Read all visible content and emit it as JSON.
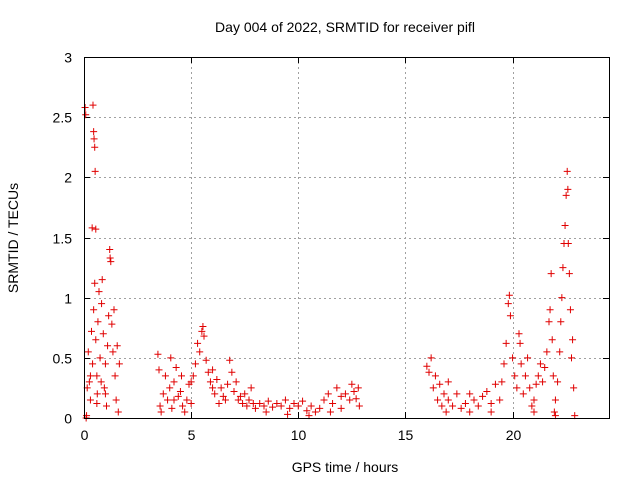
{
  "chart_data": {
    "type": "scatter",
    "title": "Day 004 of 2022, SRMTID for receiver pifl",
    "xlabel": "GPS time / hours",
    "ylabel": "SRMTID / TECUs",
    "xlim": [
      0,
      24.5
    ],
    "ylim": [
      0,
      3
    ],
    "x_ticks": [
      0,
      5,
      10,
      15,
      20
    ],
    "x_tick_labels": [
      "0",
      "5",
      "10",
      "15",
      "20"
    ],
    "y_ticks": [
      0,
      0.5,
      1,
      1.5,
      2,
      2.5,
      3
    ],
    "y_tick_labels": [
      "0",
      "0.5",
      "1",
      "1.5",
      "2",
      "2.5",
      "3"
    ],
    "grid": true,
    "marker": "+",
    "color": "#e00000",
    "series": [
      {
        "name": "SRMTID",
        "points": [
          [
            0.05,
            2.58
          ],
          [
            0.08,
            2.52
          ],
          [
            0.1,
            0.0
          ],
          [
            0.12,
            0.02
          ],
          [
            0.15,
            0.25
          ],
          [
            0.2,
            0.55
          ],
          [
            0.25,
            0.3
          ],
          [
            0.3,
            0.15
          ],
          [
            0.35,
            0.72
          ],
          [
            0.38,
            1.58
          ],
          [
            0.42,
            2.6
          ],
          [
            0.45,
            2.38
          ],
          [
            0.47,
            2.32
          ],
          [
            0.5,
            2.25
          ],
          [
            0.52,
            2.05
          ],
          [
            0.55,
            1.57
          ],
          [
            0.4,
            0.45
          ],
          [
            0.45,
            0.9
          ],
          [
            0.5,
            1.12
          ],
          [
            0.55,
            0.65
          ],
          [
            0.6,
            0.35
          ],
          [
            0.62,
            0.2
          ],
          [
            0.65,
            0.8
          ],
          [
            0.7,
            1.05
          ],
          [
            0.75,
            0.5
          ],
          [
            0.8,
            0.3
          ],
          [
            0.82,
            0.95
          ],
          [
            0.85,
            1.15
          ],
          [
            0.9,
            0.7
          ],
          [
            0.95,
            0.25
          ],
          [
            1.0,
            0.45
          ],
          [
            1.05,
            0.1
          ],
          [
            1.1,
            0.6
          ],
          [
            1.15,
            0.85
          ],
          [
            1.2,
            1.4
          ],
          [
            1.22,
            1.33
          ],
          [
            1.25,
            1.3
          ],
          [
            1.3,
            0.78
          ],
          [
            1.35,
            0.55
          ],
          [
            1.4,
            0.9
          ],
          [
            1.45,
            0.35
          ],
          [
            1.5,
            0.15
          ],
          [
            1.55,
            0.6
          ],
          [
            1.6,
            0.05
          ],
          [
            1.65,
            0.45
          ],
          [
            0.3,
            0.35
          ],
          [
            0.6,
            0.12
          ],
          [
            1.0,
            0.2
          ],
          [
            3.45,
            0.53
          ],
          [
            3.5,
            0.4
          ],
          [
            3.55,
            0.1
          ],
          [
            3.6,
            0.05
          ],
          [
            3.7,
            0.2
          ],
          [
            3.8,
            0.35
          ],
          [
            3.9,
            0.15
          ],
          [
            4.0,
            0.25
          ],
          [
            4.05,
            0.5
          ],
          [
            4.1,
            0.08
          ],
          [
            4.2,
            0.3
          ],
          [
            4.3,
            0.42
          ],
          [
            4.4,
            0.18
          ],
          [
            4.5,
            0.22
          ],
          [
            4.55,
            0.35
          ],
          [
            4.6,
            0.1
          ],
          [
            4.7,
            0.05
          ],
          [
            4.8,
            0.15
          ],
          [
            4.9,
            0.28
          ],
          [
            5.0,
            0.12
          ],
          [
            5.1,
            0.35
          ],
          [
            5.2,
            0.45
          ],
          [
            5.3,
            0.62
          ],
          [
            5.4,
            0.55
          ],
          [
            5.5,
            0.72
          ],
          [
            5.55,
            0.76
          ],
          [
            5.6,
            0.68
          ],
          [
            5.7,
            0.48
          ],
          [
            5.8,
            0.38
          ],
          [
            5.9,
            0.3
          ],
          [
            6.0,
            0.25
          ],
          [
            6.1,
            0.2
          ],
          [
            6.2,
            0.32
          ],
          [
            6.3,
            0.12
          ],
          [
            6.4,
            0.25
          ],
          [
            6.5,
            0.18
          ],
          [
            6.6,
            0.15
          ],
          [
            6.7,
            0.28
          ],
          [
            6.8,
            0.48
          ],
          [
            6.9,
            0.38
          ],
          [
            7.0,
            0.22
          ],
          [
            7.1,
            0.3
          ],
          [
            7.2,
            0.15
          ],
          [
            7.3,
            0.18
          ],
          [
            7.4,
            0.12
          ],
          [
            7.5,
            0.2
          ],
          [
            7.6,
            0.1
          ],
          [
            7.7,
            0.15
          ],
          [
            7.8,
            0.25
          ],
          [
            7.9,
            0.12
          ],
          [
            8.0,
            0.08
          ],
          [
            8.2,
            0.12
          ],
          [
            8.4,
            0.1
          ],
          [
            8.6,
            0.14
          ],
          [
            8.8,
            0.09
          ],
          [
            9.0,
            0.12
          ],
          [
            9.2,
            0.1
          ],
          [
            9.4,
            0.15
          ],
          [
            9.6,
            0.08
          ],
          [
            9.8,
            0.12
          ],
          [
            10.0,
            0.1
          ],
          [
            10.2,
            0.14
          ],
          [
            10.4,
            0.06
          ],
          [
            10.6,
            0.1
          ],
          [
            10.8,
            0.05
          ],
          [
            11.0,
            0.08
          ],
          [
            11.2,
            0.15
          ],
          [
            11.4,
            0.2
          ],
          [
            11.6,
            0.12
          ],
          [
            11.8,
            0.25
          ],
          [
            12.0,
            0.18
          ],
          [
            12.2,
            0.2
          ],
          [
            12.4,
            0.15
          ],
          [
            12.5,
            0.28
          ],
          [
            12.6,
            0.22
          ],
          [
            12.7,
            0.16
          ],
          [
            12.8,
            0.25
          ],
          [
            12.85,
            0.1
          ],
          [
            4.2,
            0.15
          ],
          [
            5.0,
            0.3
          ],
          [
            6.0,
            0.4
          ],
          [
            8.5,
            0.05
          ],
          [
            9.5,
            0.03
          ],
          [
            10.5,
            0.02
          ],
          [
            11.5,
            0.05
          ],
          [
            12.0,
            0.08
          ],
          [
            16.0,
            0.43
          ],
          [
            16.1,
            0.38
          ],
          [
            16.2,
            0.5
          ],
          [
            16.3,
            0.25
          ],
          [
            16.4,
            0.35
          ],
          [
            16.5,
            0.15
          ],
          [
            16.6,
            0.28
          ],
          [
            16.7,
            0.1
          ],
          [
            16.8,
            0.2
          ],
          [
            16.9,
            0.05
          ],
          [
            17.0,
            0.15
          ],
          [
            17.2,
            0.1
          ],
          [
            17.4,
            0.2
          ],
          [
            17.6,
            0.08
          ],
          [
            17.8,
            0.12
          ],
          [
            18.0,
            0.05
          ],
          [
            18.2,
            0.15
          ],
          [
            18.4,
            0.1
          ],
          [
            18.6,
            0.18
          ],
          [
            18.8,
            0.22
          ],
          [
            19.0,
            0.12
          ],
          [
            19.2,
            0.28
          ],
          [
            19.4,
            0.15
          ],
          [
            19.5,
            0.3
          ],
          [
            19.6,
            0.45
          ],
          [
            19.7,
            0.62
          ],
          [
            19.8,
            0.95
          ],
          [
            19.85,
            1.02
          ],
          [
            19.9,
            0.85
          ],
          [
            20.0,
            0.5
          ],
          [
            20.1,
            0.35
          ],
          [
            20.2,
            0.25
          ],
          [
            20.3,
            0.7
          ],
          [
            20.35,
            0.62
          ],
          [
            20.4,
            0.45
          ],
          [
            20.5,
            0.2
          ],
          [
            20.6,
            0.35
          ],
          [
            20.7,
            0.5
          ],
          [
            20.8,
            0.25
          ],
          [
            20.9,
            0.1
          ],
          [
            21.0,
            0.15
          ],
          [
            21.1,
            0.28
          ],
          [
            21.2,
            0.35
          ],
          [
            21.3,
            0.45
          ],
          [
            21.4,
            0.3
          ],
          [
            21.5,
            0.42
          ],
          [
            21.6,
            0.55
          ],
          [
            21.7,
            0.8
          ],
          [
            21.75,
            0.9
          ],
          [
            21.8,
            1.2
          ],
          [
            21.85,
            0.65
          ],
          [
            21.9,
            0.35
          ],
          [
            21.95,
            0.05
          ],
          [
            22.0,
            0.02
          ],
          [
            22.1,
            0.3
          ],
          [
            22.2,
            0.55
          ],
          [
            22.25,
            0.8
          ],
          [
            22.3,
            1.0
          ],
          [
            22.35,
            1.25
          ],
          [
            22.4,
            1.45
          ],
          [
            22.45,
            1.6
          ],
          [
            22.5,
            1.85
          ],
          [
            22.55,
            2.05
          ],
          [
            22.58,
            1.9
          ],
          [
            22.6,
            1.45
          ],
          [
            22.65,
            1.2
          ],
          [
            22.7,
            0.9
          ],
          [
            22.75,
            0.5
          ],
          [
            22.8,
            0.65
          ],
          [
            22.85,
            0.25
          ],
          [
            22.9,
            0.02
          ],
          [
            17.0,
            0.3
          ],
          [
            18.0,
            0.2
          ],
          [
            19.0,
            0.05
          ],
          [
            21.0,
            0.05
          ],
          [
            22.0,
            0.15
          ]
        ]
      }
    ]
  }
}
